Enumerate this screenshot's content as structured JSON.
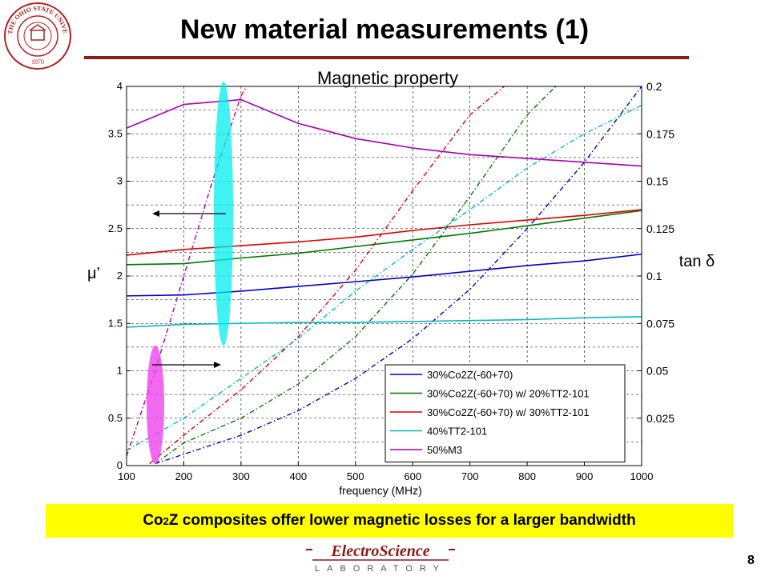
{
  "slide": {
    "title": "New material measurements (1)",
    "page_number": "8",
    "seal_text": "THE OHIO STATE UNIVERSITY",
    "seal_year": "1870",
    "banner": {
      "pre": "Co",
      "sub": "2",
      "post": "Z composites offer lower magnetic losses for a larger bandwidth"
    },
    "logo": {
      "name": "ElectroScience",
      "subtitle": "LABORATORY"
    },
    "colors": {
      "accent_rule": "#8b1a1a",
      "banner_bg": "#ffff00"
    }
  },
  "chart_data": {
    "type": "line",
    "title": "Magnetic property",
    "xlabel": "frequency (MHz)",
    "ylabel": "μ’",
    "y2label": "tan δ",
    "xlim": [
      100,
      1000
    ],
    "ylim": [
      0,
      4
    ],
    "y2lim": [
      0,
      0.2
    ],
    "xticks": [
      "100",
      "200",
      "300",
      "400",
      "500",
      "600",
      "700",
      "800",
      "900",
      "1000"
    ],
    "yticks": [
      "0",
      "0.5",
      "1",
      "1.5",
      "2",
      "2.5",
      "3",
      "3.5",
      "4"
    ],
    "y2ticks": [
      "0.025",
      "0.05",
      "0.075",
      "0.1",
      "0.125",
      "0.15",
      "0.175",
      "0.2"
    ],
    "grid": true,
    "legend_position": "bottom-right",
    "x": [
      100,
      200,
      300,
      400,
      500,
      600,
      700,
      800,
      900,
      1000
    ],
    "series": [
      {
        "name": "30%Co2Z(-60+70)",
        "color": "#0000cc",
        "mu": [
          1.79,
          1.8,
          1.84,
          1.89,
          1.94,
          1.99,
          2.05,
          2.11,
          2.16,
          2.23
        ],
        "tan_x": [
          150,
          200,
          300,
          400,
          500,
          600,
          700,
          800,
          900,
          1000
        ],
        "tan": [
          0.001,
          0.006,
          0.016,
          0.029,
          0.046,
          0.067,
          0.093,
          0.125,
          0.16,
          0.2
        ]
      },
      {
        "name": "30%Co2Z(-60+70) w/ 20%TT2-101",
        "color": "#007700",
        "mu": [
          2.12,
          2.13,
          2.19,
          2.24,
          2.31,
          2.38,
          2.45,
          2.53,
          2.61,
          2.69
        ],
        "tan_x": [
          150,
          200,
          300,
          400,
          500,
          600,
          700,
          800,
          850
        ],
        "tan": [
          0.001,
          0.012,
          0.025,
          0.043,
          0.068,
          0.101,
          0.142,
          0.185,
          0.2
        ]
      },
      {
        "name": "30%Co2Z(-60+70) w/ 30%TT2-101",
        "color": "#dd0000",
        "mu": [
          2.22,
          2.28,
          2.32,
          2.36,
          2.41,
          2.48,
          2.54,
          2.59,
          2.64,
          2.7
        ],
        "tan_x": [
          140,
          200,
          300,
          400,
          500,
          600,
          700,
          760
        ],
        "tan": [
          0.001,
          0.016,
          0.04,
          0.068,
          0.103,
          0.145,
          0.185,
          0.2
        ]
      },
      {
        "name": "40%TT2-101",
        "color": "#00bbbb",
        "mu": [
          1.46,
          1.49,
          1.5,
          1.51,
          1.51,
          1.52,
          1.53,
          1.54,
          1.56,
          1.57
        ],
        "tan_x": [
          100,
          200,
          300,
          400,
          500,
          600,
          700,
          800,
          900,
          1000
        ],
        "tan": [
          0.008,
          0.025,
          0.046,
          0.067,
          0.092,
          0.114,
          0.135,
          0.157,
          0.175,
          0.19
        ]
      },
      {
        "name": "50%M3",
        "color": "#aa00aa",
        "mu": [
          3.56,
          3.81,
          3.86,
          3.61,
          3.45,
          3.35,
          3.28,
          3.24,
          3.2,
          3.16
        ],
        "tan_x": [
          100,
          150,
          200,
          250,
          300,
          310
        ],
        "tan": [
          0.005,
          0.05,
          0.1,
          0.15,
          0.195,
          0.2
        ]
      }
    ]
  }
}
